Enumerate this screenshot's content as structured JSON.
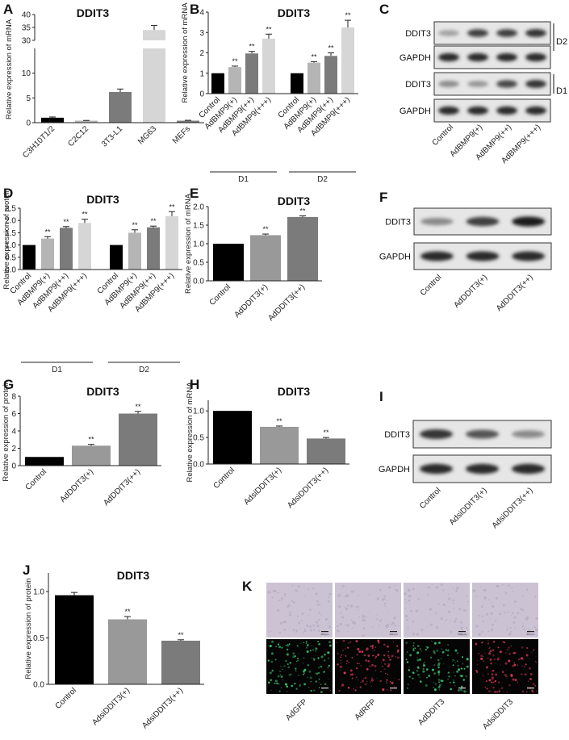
{
  "panel_labels": [
    "A",
    "B",
    "C",
    "D",
    "E",
    "F",
    "G",
    "H",
    "I",
    "J",
    "K"
  ],
  "colors": {
    "black": "#000000",
    "light_gray": "#b5b5b5",
    "very_light_gray": "#d6d6d6",
    "dark_gray": "#7b7b7b",
    "mid_gray": "#999999"
  },
  "chart_data": [
    {
      "panel": "A",
      "type": "bar",
      "title": "DDIT3",
      "ylabel": "Relative expression of mRNA",
      "categories": [
        "C3H10T1/2",
        "C2C12",
        "3T3-L1",
        "MG63",
        "MEFs"
      ],
      "values": [
        1.0,
        0.4,
        6.2,
        34.0,
        0.4
      ],
      "errors": [
        0.15,
        0.05,
        0.6,
        1.8,
        0.08
      ],
      "colors": [
        "#000000",
        "#b5b5b5",
        "#7b7b7b",
        "#d6d6d6",
        "#7b7b7b"
      ],
      "y_axis_break": [
        15,
        30
      ],
      "yticks_lower": [
        0,
        5,
        10
      ],
      "yticks_upper": [
        30,
        35,
        40
      ],
      "significance": [
        "",
        "",
        "",
        "",
        ""
      ]
    },
    {
      "panel": "B",
      "type": "bar",
      "title": "DDIT3",
      "ylabel": "Relative expression of mRNA",
      "categories": [
        "Control",
        "AdBMP9(+)",
        "AdBMP9(++)",
        "AdBMP9(+++)",
        "Control",
        "AdBMP9(+)",
        "AdBMP9(++)",
        "AdBMP9(+++)"
      ],
      "groups": [
        "D1",
        "D2"
      ],
      "values": [
        1.0,
        1.3,
        1.97,
        2.7,
        1.0,
        1.52,
        1.85,
        3.25
      ],
      "errors": [
        0,
        0.05,
        0.1,
        0.22,
        0,
        0.05,
        0.15,
        0.35
      ],
      "colors": [
        "#000000",
        "#b5b5b5",
        "#7b7b7b",
        "#d6d6d6",
        "#000000",
        "#b5b5b5",
        "#7b7b7b",
        "#d6d6d6"
      ],
      "significance": [
        "",
        "**",
        "**",
        "**",
        "",
        "**",
        "**",
        "**"
      ],
      "ylim": [
        0,
        4
      ],
      "yticks": [
        0,
        1,
        2,
        3,
        4
      ]
    },
    {
      "panel": "D",
      "type": "bar",
      "title": "DDIT3",
      "ylabel": "Relative expression of protein",
      "categories": [
        "Control",
        "AdBMP9(+)",
        "AdBMP9(++)",
        "AdBMP9(+++)",
        "Control",
        "AdBMP9(+)",
        "AdBMP9(++)",
        "AdBMP9(+++)"
      ],
      "groups": [
        "D1",
        "D2"
      ],
      "values": [
        1.0,
        1.26,
        1.7,
        1.9,
        1.0,
        1.5,
        1.72,
        2.18
      ],
      "errors": [
        0,
        0.08,
        0.05,
        0.15,
        0,
        0.12,
        0.05,
        0.18
      ],
      "colors": [
        "#000000",
        "#b5b5b5",
        "#7b7b7b",
        "#d6d6d6",
        "#000000",
        "#b5b5b5",
        "#7b7b7b",
        "#d6d6d6"
      ],
      "significance": [
        "",
        "**",
        "**",
        "**",
        "",
        "**",
        "**",
        "**"
      ],
      "ylim": [
        0,
        2.5
      ],
      "yticks": [
        0,
        0.5,
        1.0,
        1.5,
        2.0,
        2.5
      ]
    },
    {
      "panel": "E",
      "type": "bar",
      "title": "DDIT3",
      "ylabel": "Relative expression of mRNA",
      "categories": [
        "Control",
        "AdDDIT3(+)",
        "AdDDIT3(++)"
      ],
      "values": [
        1.0,
        1.23,
        1.72
      ],
      "errors": [
        0,
        0.03,
        0.03
      ],
      "colors": [
        "#000000",
        "#999999",
        "#7b7b7b"
      ],
      "significance": [
        "",
        "**",
        "**"
      ],
      "ylim": [
        0,
        2.0
      ],
      "yticks": [
        0,
        0.5,
        1.0,
        1.5,
        2.0
      ]
    },
    {
      "panel": "G",
      "type": "bar",
      "title": "DDIT3",
      "ylabel": "Relative expression of protein",
      "categories": [
        "Control",
        "AdDDIT3(+)",
        "AdDDIT3(++)"
      ],
      "values": [
        1.0,
        2.3,
        6.0
      ],
      "errors": [
        0,
        0.15,
        0.25
      ],
      "colors": [
        "#000000",
        "#999999",
        "#7b7b7b"
      ],
      "significance": [
        "",
        "**",
        "**"
      ],
      "ylim": [
        0,
        8
      ],
      "yticks": [
        0,
        2,
        4,
        6,
        8
      ]
    },
    {
      "panel": "H",
      "type": "bar",
      "title": "DDIT3",
      "ylabel": "Relative expression of mRNA",
      "categories": [
        "Control",
        "AdsiDDIT3(+)",
        "AdsiDDIT3(++)"
      ],
      "values": [
        1.0,
        0.7,
        0.48
      ],
      "errors": [
        0,
        0.015,
        0.02
      ],
      "colors": [
        "#000000",
        "#999999",
        "#7b7b7b"
      ],
      "significance": [
        "",
        "**",
        "**"
      ],
      "ylim": [
        0,
        1.2
      ],
      "yticks": [
        0,
        0.5,
        1.0
      ]
    },
    {
      "panel": "J",
      "type": "bar",
      "title": "DDIT3",
      "ylabel": "Relative expression of protein",
      "categories": [
        "Control",
        "AdsiDDIT3(+)",
        "AdsiDDIT3(++)"
      ],
      "values": [
        0.96,
        0.7,
        0.47
      ],
      "errors": [
        0.03,
        0.03,
        0.01
      ],
      "colors": [
        "#000000",
        "#999999",
        "#7b7b7b"
      ],
      "significance": [
        "",
        "**",
        "**"
      ],
      "ylim": [
        0,
        1.2
      ],
      "yticks": [
        0,
        0.5,
        1.0
      ]
    }
  ],
  "blots": {
    "C": {
      "rows": [
        "DDIT3",
        "GAPDH",
        "DDIT3",
        "GAPDH"
      ],
      "side_labels": [
        "D2",
        "D1"
      ],
      "lanes": [
        "Control",
        "AdBMP9(+)",
        "AdBMP9(++)",
        "AdBMP9(+++)"
      ],
      "intensity": [
        [
          0.35,
          0.8,
          0.8,
          0.85
        ],
        [
          0.9,
          0.9,
          0.9,
          0.9
        ],
        [
          0.45,
          0.4,
          0.75,
          0.85
        ],
        [
          0.9,
          0.9,
          0.9,
          0.9
        ]
      ]
    },
    "F": {
      "rows": [
        "DDIT3",
        "GAPDH"
      ],
      "lanes": [
        "Control",
        "AdDDIT3(+)",
        "AdDDIT3(++)"
      ],
      "intensity": [
        [
          0.45,
          0.8,
          0.95
        ],
        [
          0.9,
          0.9,
          0.9
        ]
      ]
    },
    "I": {
      "rows": [
        "DDIT3",
        "GAPDH"
      ],
      "lanes": [
        "Control",
        "AdsiDDIT3(+)",
        "AdsiDDIT3(++)"
      ],
      "intensity": [
        [
          0.85,
          0.7,
          0.45
        ],
        [
          0.9,
          0.9,
          0.9
        ]
      ]
    }
  },
  "micrographs": {
    "columns": [
      "AdGFP",
      "AdRFP",
      "AdDDIT3",
      "AdsiDDIT3"
    ],
    "fluorescence": [
      "green",
      "red",
      "green",
      "red"
    ],
    "scale_bar": "200 μm"
  }
}
